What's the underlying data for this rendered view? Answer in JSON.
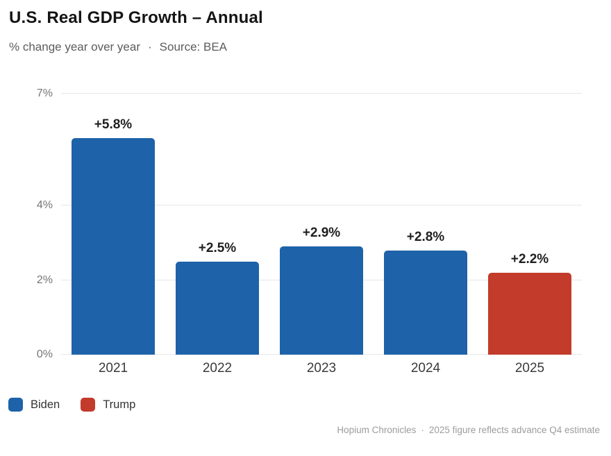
{
  "header": {
    "title": "U.S. Real GDP Growth – Annual",
    "subtitle_left": "% change year over year",
    "separator": "·",
    "subtitle_right": "Source: BEA"
  },
  "chart_data": {
    "type": "bar",
    "title": "U.S. Real GDP Growth – Annual",
    "subtitle": "% change year over year · Source: BEA",
    "categories": [
      "2021",
      "2022",
      "2023",
      "2024",
      "2025"
    ],
    "values": [
      5.8,
      2.5,
      2.9,
      2.8,
      2.2
    ],
    "value_labels": [
      "+5.8%",
      "+2.5%",
      "+2.9%",
      "+2.8%",
      "+2.2%"
    ],
    "bar_colors": [
      "#1e62a9",
      "#1e62a9",
      "#1e62a9",
      "#1e62a9",
      "#c23b2b"
    ],
    "xlabel": "",
    "ylabel": "% change year over year",
    "ylim": [
      0,
      7
    ],
    "yticks": [
      0,
      2,
      4,
      7
    ],
    "ytick_labels": [
      "0%",
      "2%",
      "4%",
      "7%"
    ],
    "grid": true,
    "legend_position": "bottom-left",
    "series_note": "2021-2024 colored as Biden (blue), 2025 as Trump (red)"
  },
  "legend": {
    "items": [
      {
        "label": "Biden",
        "color": "#1e62a9"
      },
      {
        "label": "Trump",
        "color": "#c23b2b"
      }
    ]
  },
  "footer": {
    "credit": "Hopium Chronicles",
    "separator": "·",
    "note": "2025 figure reflects advance Q4 estimate"
  },
  "colors": {
    "biden_blue": "#1e62a9",
    "trump_red": "#c23b2b",
    "gridline": "#e7e7e7",
    "axis_text": "#757575",
    "value_text": "#1f1f1f",
    "background": "#ffffff"
  }
}
